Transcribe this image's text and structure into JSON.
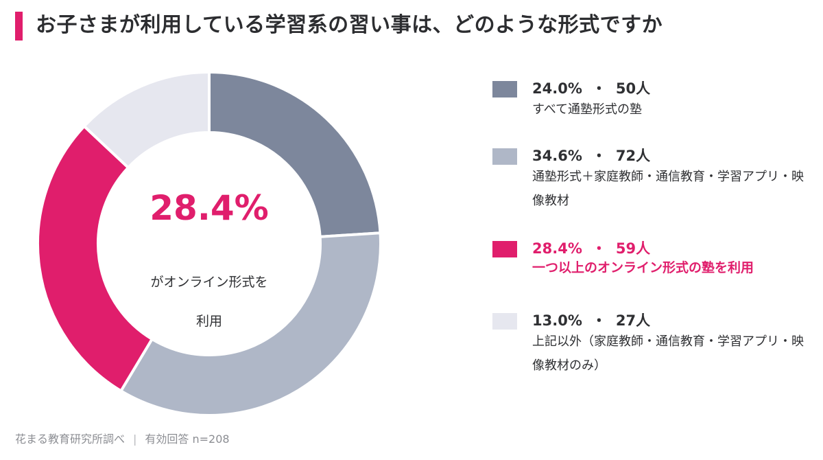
{
  "title": "お子さまが利用している学習系の習い事は、どのような形式ですか",
  "colors": {
    "accent": "#e01e6c",
    "text": "#2f3033",
    "footer": "#8c8e93"
  },
  "center": {
    "value": "28.4%",
    "line1": "がオンライン形式を",
    "line2": "利用"
  },
  "chart_data": {
    "type": "pie",
    "variant": "donut",
    "legend_position": "right",
    "slices": [
      {
        "percent": "24.0%",
        "count": "50人",
        "value": 24.0,
        "label": "すべて通塾形式の塾",
        "color": "#7d879c",
        "highlight": false
      },
      {
        "percent": "34.6%",
        "count": "72人",
        "value": 34.6,
        "label": "通塾形式＋家庭教師・通信教育・学習アプリ・映像教材",
        "color": "#afb7c7",
        "highlight": false
      },
      {
        "percent": "28.4%",
        "count": "59人",
        "value": 28.4,
        "label": "一つ以上のオンライン形式の塾を利用",
        "color": "#e01e6c",
        "highlight": true
      },
      {
        "percent": "13.0%",
        "count": "27人",
        "value": 13.0,
        "label": "上記以外（家庭教師・通信教育・学習アプリ・映像教材のみ）",
        "color": "#e6e7ef",
        "highlight": false
      }
    ]
  },
  "footer": {
    "source": "花まる教育研究所調べ",
    "divider": "|",
    "respondents": "有効回答 n=208"
  }
}
